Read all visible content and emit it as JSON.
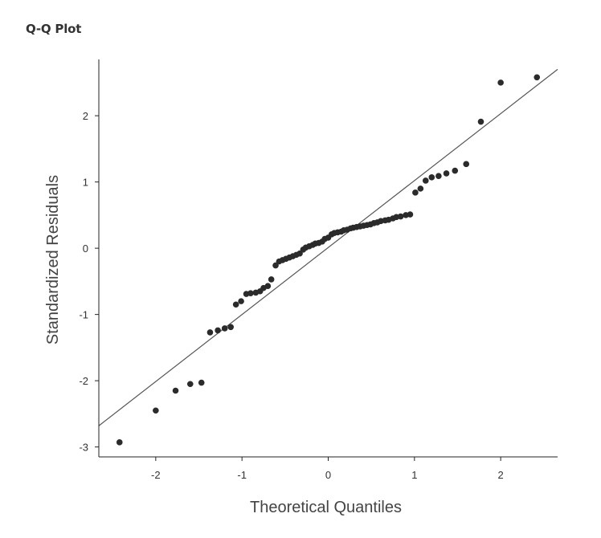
{
  "chart_data": {
    "type": "scatter",
    "title": "Q-Q Plot",
    "xlabel": "Theoretical Quantiles",
    "ylabel": "Standardized Residuals",
    "xlim": [
      -2.66,
      2.66
    ],
    "ylim": [
      -3.15,
      2.85
    ],
    "xticks": [
      -2,
      -1,
      0,
      1,
      2
    ],
    "yticks": [
      -3,
      -2,
      -1,
      0,
      1,
      2
    ],
    "grid": false,
    "reference_line": {
      "x": [
        -2.66,
        2.66
      ],
      "y": [
        -2.68,
        2.7
      ]
    },
    "colors": {
      "points": "#2b2b2b",
      "line": "#555555",
      "axis": "#222222"
    },
    "points": [
      {
        "x": -2.42,
        "y": -2.93
      },
      {
        "x": -2.0,
        "y": -2.45
      },
      {
        "x": -1.77,
        "y": -2.15
      },
      {
        "x": -1.6,
        "y": -2.05
      },
      {
        "x": -1.47,
        "y": -2.03
      },
      {
        "x": -1.37,
        "y": -1.27
      },
      {
        "x": -1.28,
        "y": -1.24
      },
      {
        "x": -1.2,
        "y": -1.21
      },
      {
        "x": -1.13,
        "y": -1.19
      },
      {
        "x": -1.07,
        "y": -0.85
      },
      {
        "x": -1.01,
        "y": -0.8
      },
      {
        "x": -0.95,
        "y": -0.69
      },
      {
        "x": -0.9,
        "y": -0.68
      },
      {
        "x": -0.84,
        "y": -0.67
      },
      {
        "x": -0.79,
        "y": -0.65
      },
      {
        "x": -0.75,
        "y": -0.6
      },
      {
        "x": -0.7,
        "y": -0.57
      },
      {
        "x": -0.66,
        "y": -0.47
      },
      {
        "x": -0.61,
        "y": -0.26
      },
      {
        "x": -0.57,
        "y": -0.2
      },
      {
        "x": -0.53,
        "y": -0.18
      },
      {
        "x": -0.49,
        "y": -0.16
      },
      {
        "x": -0.45,
        "y": -0.14
      },
      {
        "x": -0.41,
        "y": -0.12
      },
      {
        "x": -0.37,
        "y": -0.1
      },
      {
        "x": -0.33,
        "y": -0.08
      },
      {
        "x": -0.29,
        "y": -0.02
      },
      {
        "x": -0.26,
        "y": 0.01
      },
      {
        "x": -0.22,
        "y": 0.03
      },
      {
        "x": -0.18,
        "y": 0.05
      },
      {
        "x": -0.15,
        "y": 0.07
      },
      {
        "x": -0.11,
        "y": 0.08
      },
      {
        "x": -0.07,
        "y": 0.1
      },
      {
        "x": -0.04,
        "y": 0.14
      },
      {
        "x": 0.0,
        "y": 0.16
      },
      {
        "x": 0.04,
        "y": 0.21
      },
      {
        "x": 0.07,
        "y": 0.23
      },
      {
        "x": 0.11,
        "y": 0.24
      },
      {
        "x": 0.15,
        "y": 0.25
      },
      {
        "x": 0.18,
        "y": 0.27
      },
      {
        "x": 0.22,
        "y": 0.28
      },
      {
        "x": 0.26,
        "y": 0.3
      },
      {
        "x": 0.29,
        "y": 0.31
      },
      {
        "x": 0.33,
        "y": 0.32
      },
      {
        "x": 0.37,
        "y": 0.33
      },
      {
        "x": 0.41,
        "y": 0.34
      },
      {
        "x": 0.45,
        "y": 0.35
      },
      {
        "x": 0.49,
        "y": 0.36
      },
      {
        "x": 0.53,
        "y": 0.38
      },
      {
        "x": 0.57,
        "y": 0.39
      },
      {
        "x": 0.61,
        "y": 0.41
      },
      {
        "x": 0.66,
        "y": 0.42
      },
      {
        "x": 0.7,
        "y": 0.43
      },
      {
        "x": 0.75,
        "y": 0.45
      },
      {
        "x": 0.79,
        "y": 0.47
      },
      {
        "x": 0.84,
        "y": 0.48
      },
      {
        "x": 0.9,
        "y": 0.5
      },
      {
        "x": 0.95,
        "y": 0.51
      },
      {
        "x": 1.01,
        "y": 0.84
      },
      {
        "x": 1.07,
        "y": 0.9
      },
      {
        "x": 1.13,
        "y": 1.02
      },
      {
        "x": 1.2,
        "y": 1.07
      },
      {
        "x": 1.28,
        "y": 1.09
      },
      {
        "x": 1.37,
        "y": 1.13
      },
      {
        "x": 1.47,
        "y": 1.17
      },
      {
        "x": 1.6,
        "y": 1.27
      },
      {
        "x": 1.77,
        "y": 1.91
      },
      {
        "x": 2.0,
        "y": 2.5
      },
      {
        "x": 2.42,
        "y": 2.58
      }
    ]
  }
}
